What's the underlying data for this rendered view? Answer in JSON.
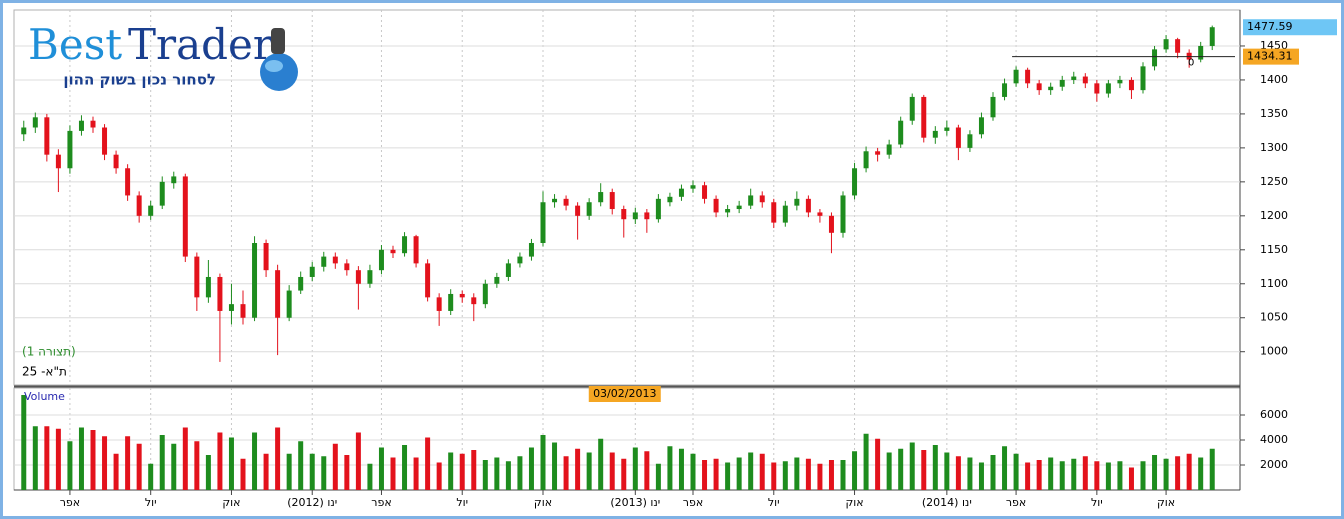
{
  "logo": {
    "brand_first": "Best",
    "brand_second": "Trader",
    "tagline": "לסחור נכון בשוק ההון"
  },
  "chart_data": [
    {
      "type": "candlestick",
      "title": "ת\"א- 25",
      "subtitle": "(תצורה 1)",
      "up_color": "#1e8c1e",
      "down_color": "#e3121c",
      "grid": true,
      "ylim": [
        951,
        1500
      ],
      "yticks": [
        1000,
        1050,
        1100,
        1150,
        1200,
        1250,
        1300,
        1350,
        1400,
        1450
      ],
      "hline_value": 1434.31,
      "hline_note": 0,
      "hline_color": "#f5a623",
      "last_color": "#6ec6f5",
      "open": [
        1320,
        1330,
        1345,
        1290,
        1270,
        1325,
        1340,
        1330,
        1290,
        1270,
        1230,
        1200,
        1215,
        1248,
        1258,
        1140,
        1080,
        1110,
        1060,
        1070,
        1050,
        1160,
        1120,
        1050,
        1090,
        1110,
        1125,
        1140,
        1130,
        1120,
        1100,
        1120,
        1150,
        1145,
        1170,
        1130,
        1080,
        1060,
        1085,
        1080,
        1070,
        1100,
        1110,
        1130,
        1140,
        1160,
        1220,
        1225,
        1215,
        1200,
        1220,
        1235,
        1210,
        1195,
        1205,
        1195,
        1220,
        1228,
        1240,
        1245,
        1225,
        1205,
        1210,
        1215,
        1230,
        1220,
        1190,
        1215,
        1225,
        1205,
        1200,
        1175,
        1230,
        1270,
        1295,
        1290,
        1305,
        1340,
        1375,
        1315,
        1325,
        1330,
        1300,
        1320,
        1345,
        1375,
        1395,
        1415,
        1395,
        1385,
        1390,
        1400,
        1405,
        1395,
        1380,
        1395,
        1400,
        1385,
        1420,
        1445,
        1460,
        1440,
        1430,
        1450
      ],
      "high": [
        1340,
        1352,
        1350,
        1298,
        1333,
        1348,
        1346,
        1335,
        1296,
        1276,
        1236,
        1222,
        1258,
        1265,
        1262,
        1146,
        1135,
        1115,
        1100,
        1090,
        1170,
        1165,
        1128,
        1098,
        1118,
        1132,
        1147,
        1146,
        1136,
        1126,
        1128,
        1157,
        1156,
        1176,
        1172,
        1136,
        1086,
        1092,
        1090,
        1086,
        1106,
        1116,
        1136,
        1146,
        1166,
        1236,
        1232,
        1230,
        1220,
        1226,
        1248,
        1240,
        1215,
        1212,
        1210,
        1232,
        1234,
        1246,
        1252,
        1250,
        1230,
        1216,
        1222,
        1240,
        1236,
        1225,
        1222,
        1236,
        1230,
        1210,
        1205,
        1236,
        1278,
        1302,
        1300,
        1312,
        1346,
        1380,
        1378,
        1332,
        1340,
        1334,
        1326,
        1352,
        1382,
        1402,
        1420,
        1418,
        1400,
        1396,
        1406,
        1412,
        1410,
        1400,
        1400,
        1406,
        1404,
        1426,
        1450,
        1466,
        1462,
        1445,
        1456,
        1480
      ],
      "low": [
        1310,
        1322,
        1280,
        1235,
        1262,
        1318,
        1322,
        1282,
        1262,
        1222,
        1190,
        1194,
        1210,
        1240,
        1132,
        1060,
        1072,
        985,
        1040,
        1040,
        1045,
        1110,
        995,
        1045,
        1085,
        1104,
        1118,
        1122,
        1112,
        1062,
        1094,
        1114,
        1138,
        1140,
        1124,
        1074,
        1038,
        1054,
        1072,
        1045,
        1064,
        1094,
        1104,
        1124,
        1134,
        1155,
        1212,
        1208,
        1165,
        1194,
        1214,
        1202,
        1168,
        1188,
        1175,
        1190,
        1214,
        1222,
        1234,
        1218,
        1198,
        1198,
        1204,
        1210,
        1212,
        1182,
        1184,
        1208,
        1198,
        1190,
        1145,
        1168,
        1224,
        1264,
        1280,
        1284,
        1300,
        1334,
        1308,
        1306,
        1318,
        1282,
        1294,
        1314,
        1340,
        1370,
        1390,
        1388,
        1378,
        1378,
        1384,
        1394,
        1388,
        1368,
        1374,
        1388,
        1372,
        1380,
        1414,
        1440,
        1432,
        1418,
        1426,
        1444
      ],
      "close": [
        1330,
        1345,
        1290,
        1270,
        1325,
        1340,
        1330,
        1290,
        1270,
        1230,
        1200,
        1215,
        1250,
        1258,
        1140,
        1080,
        1110,
        1060,
        1070,
        1050,
        1160,
        1120,
        1050,
        1090,
        1110,
        1125,
        1140,
        1130,
        1120,
        1100,
        1120,
        1150,
        1145,
        1170,
        1130,
        1080,
        1060,
        1085,
        1080,
        1070,
        1100,
        1110,
        1130,
        1140,
        1160,
        1220,
        1225,
        1215,
        1200,
        1220,
        1235,
        1210,
        1195,
        1205,
        1195,
        1225,
        1228,
        1240,
        1245,
        1225,
        1205,
        1210,
        1215,
        1230,
        1220,
        1190,
        1215,
        1225,
        1205,
        1200,
        1175,
        1230,
        1270,
        1295,
        1290,
        1305,
        1340,
        1375,
        1315,
        1325,
        1330,
        1300,
        1320,
        1345,
        1375,
        1395,
        1415,
        1395,
        1385,
        1390,
        1400,
        1405,
        1395,
        1380,
        1395,
        1400,
        1385,
        1420,
        1445,
        1460,
        1440,
        1430,
        1450,
        1477.59
      ]
    },
    {
      "type": "bar",
      "title": "Volume",
      "cursor_date": "03/02/2013",
      "cursor_color": "#f5a623",
      "grid": true,
      "ylim": [
        0,
        8160
      ],
      "yticks": [
        2000,
        4000,
        6000
      ],
      "categories": [
        null,
        null,
        null,
        null,
        "אפר",
        null,
        null,
        null,
        null,
        null,
        null,
        "יול",
        null,
        null,
        null,
        null,
        null,
        null,
        "אוק",
        null,
        null,
        null,
        null,
        null,
        null,
        "(2012) ינו",
        null,
        null,
        null,
        null,
        null,
        "אפר",
        null,
        null,
        null,
        null,
        null,
        null,
        "יול",
        null,
        null,
        null,
        null,
        null,
        null,
        "אוק",
        null,
        null,
        null,
        null,
        null,
        null,
        null,
        "(2013) ינו",
        null,
        null,
        null,
        null,
        "אפר",
        null,
        null,
        null,
        null,
        null,
        null,
        "יול",
        null,
        null,
        null,
        null,
        null,
        null,
        "אוק",
        null,
        null,
        null,
        null,
        null,
        null,
        null,
        "(2014) ינו",
        null,
        null,
        null,
        null,
        null,
        "אפר",
        null,
        null,
        null,
        null,
        null,
        null,
        "יול",
        null,
        null,
        null,
        null,
        null,
        "אוק",
        null,
        null,
        null,
        null
      ],
      "values": [
        7600,
        5100,
        5100,
        4900,
        3900,
        5000,
        4800,
        4300,
        2900,
        4300,
        3700,
        2100,
        4400,
        3700,
        5000,
        3900,
        2800,
        4600,
        4200,
        2500,
        4600,
        2900,
        5000,
        2900,
        3900,
        2900,
        2700,
        3700,
        2800,
        4600,
        2100,
        3400,
        2600,
        3600,
        2600,
        4200,
        2200,
        3000,
        2900,
        3200,
        2400,
        2600,
        2300,
        2700,
        3400,
        4400,
        3800,
        2700,
        3300,
        3000,
        4100,
        3000,
        2500,
        3400,
        3100,
        2100,
        3500,
        3300,
        2900,
        2400,
        2500,
        2200,
        2600,
        3000,
        2900,
        2200,
        2300,
        2600,
        2500,
        2100,
        2400,
        2400,
        3100,
        4500,
        4100,
        3000,
        3300,
        3800,
        3200,
        3600,
        3000,
        2700,
        2600,
        2200,
        2800,
        3500,
        2900,
        2200,
        2400,
        2600,
        2300,
        2500,
        2700,
        2300,
        2200,
        2300,
        1800,
        2300,
        2800,
        2500,
        2700,
        2900,
        2600,
        3300
      ]
    }
  ]
}
